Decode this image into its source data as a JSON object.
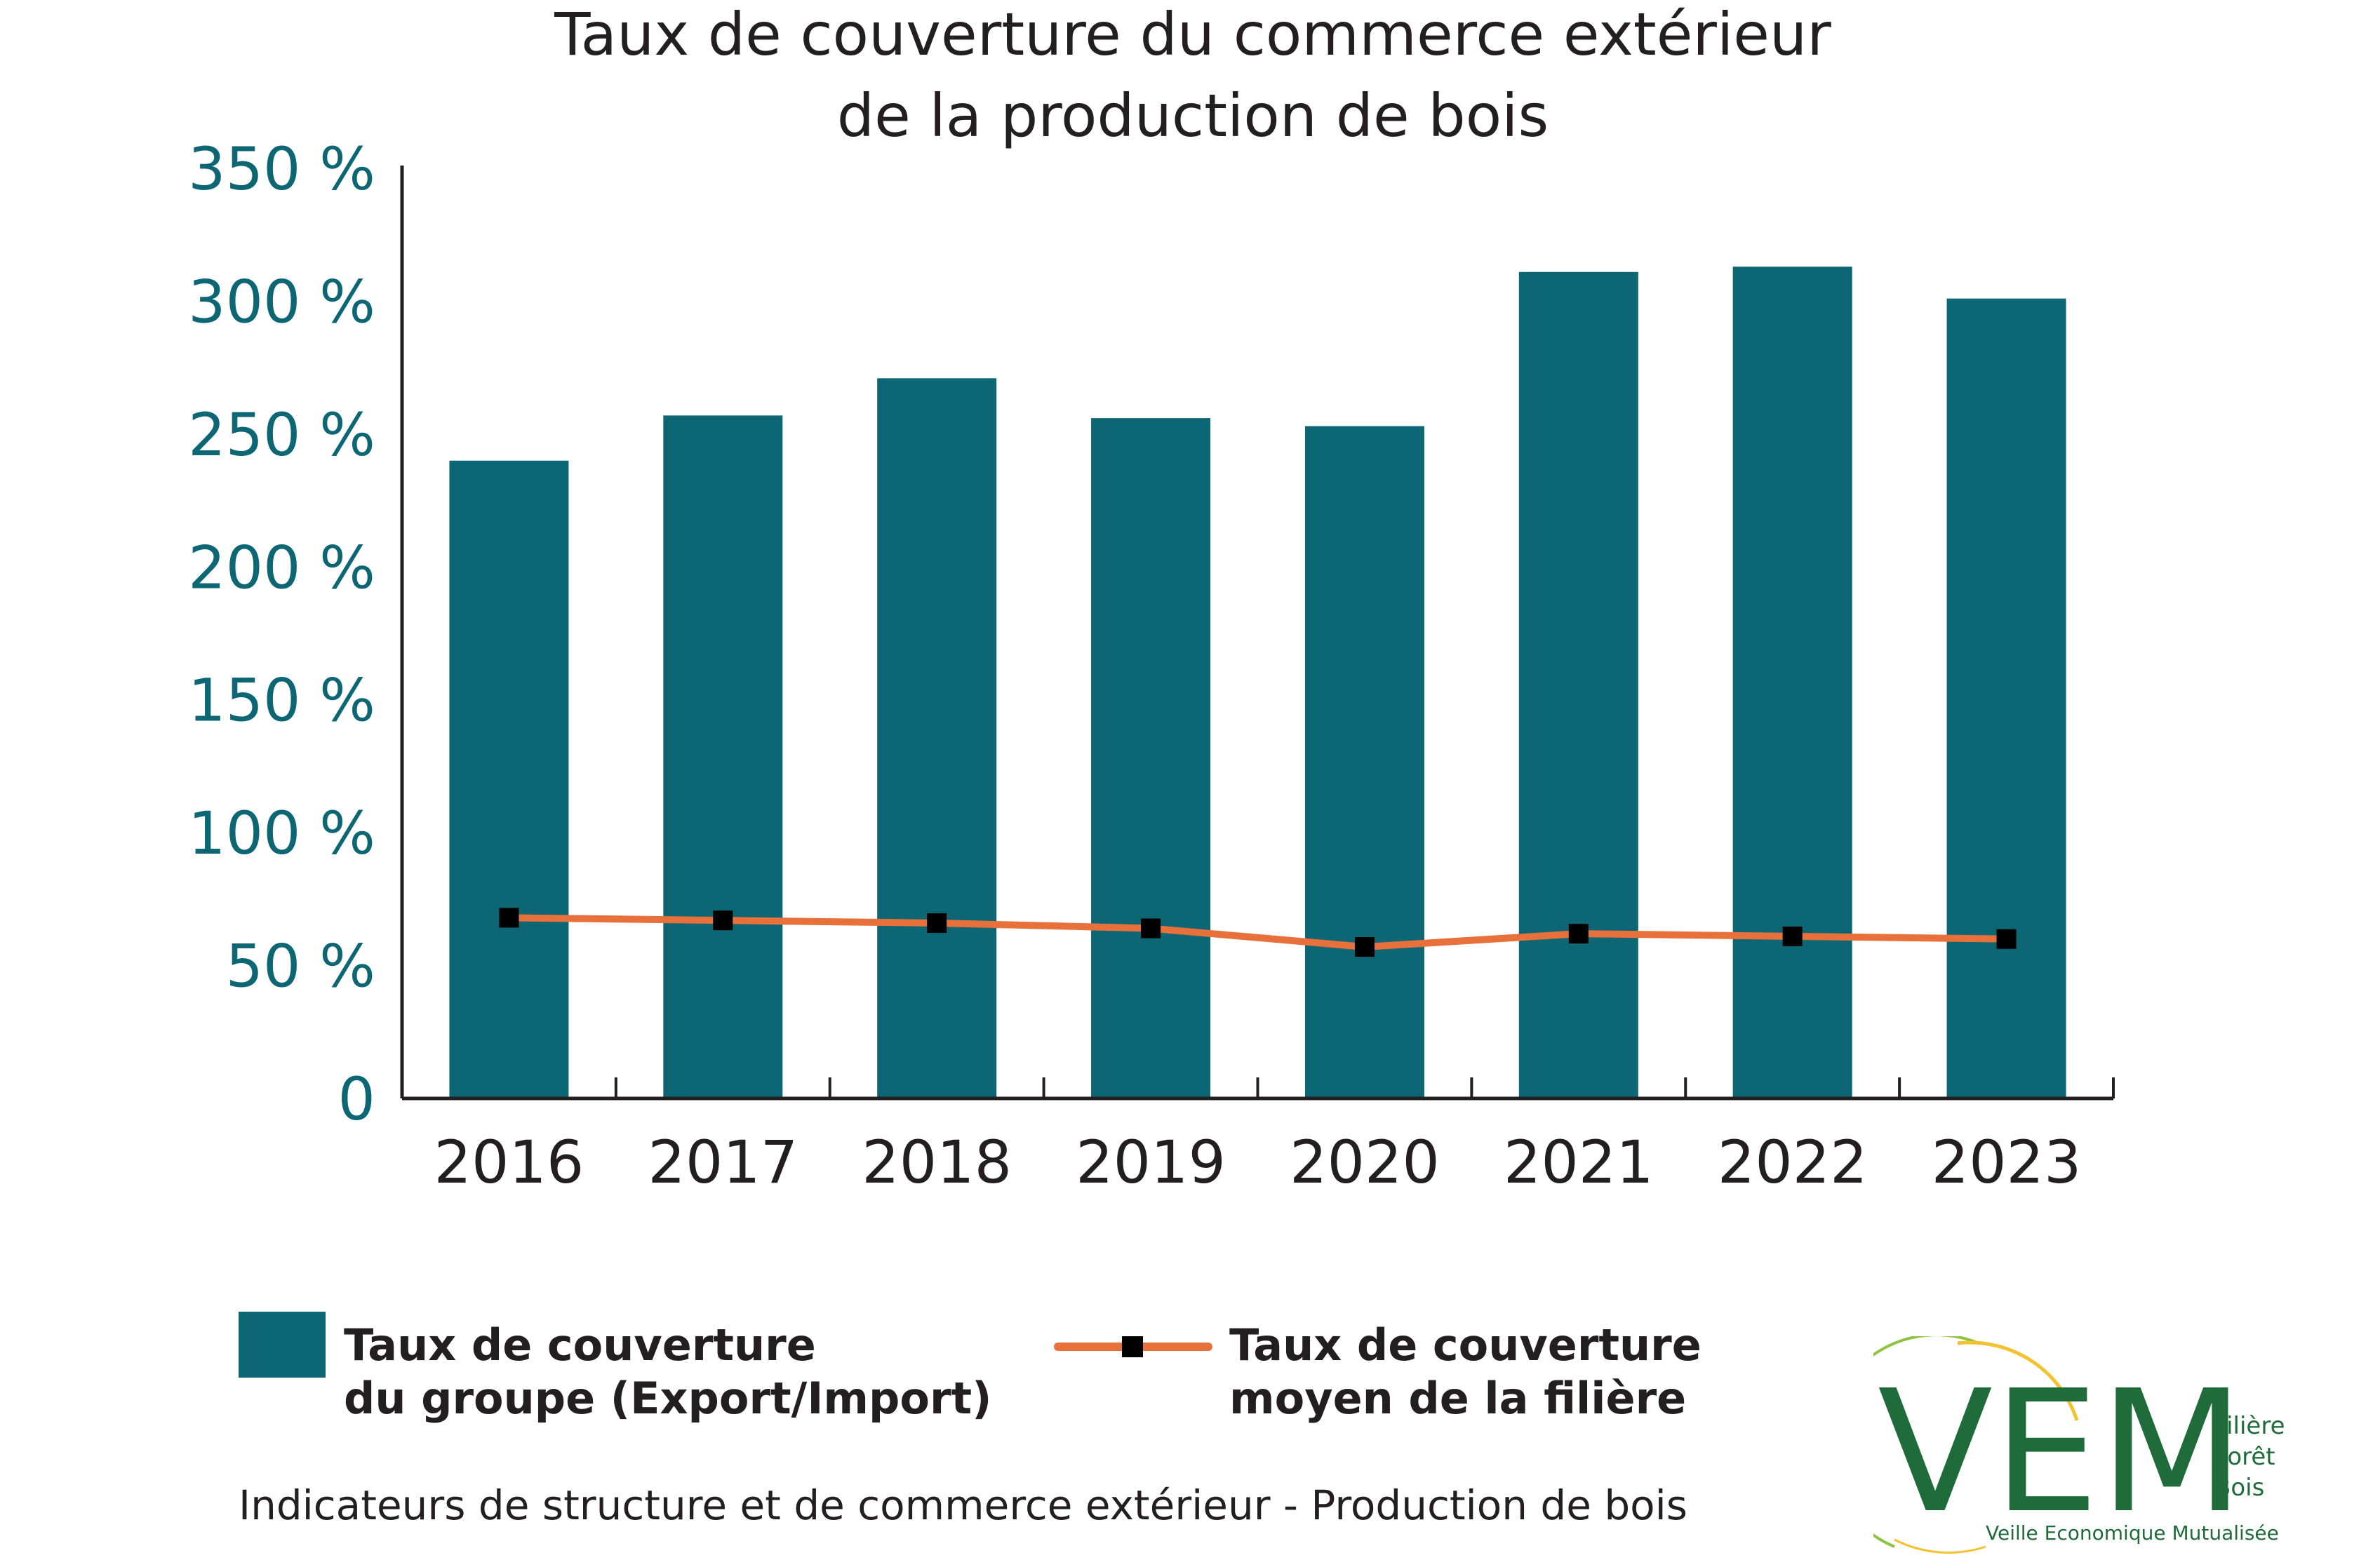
{
  "chart_data": {
    "type": "bar",
    "title": [
      "Taux de couverture du commerce extérieur",
      "de la production de bois"
    ],
    "categories": [
      "2016",
      "2017",
      "2018",
      "2019",
      "2020",
      "2021",
      "2022",
      "2023"
    ],
    "ylim": [
      0,
      350
    ],
    "yticks": [
      0,
      50,
      100,
      150,
      200,
      250,
      300,
      350
    ],
    "ytick_labels": [
      "0",
      "50 %",
      "100 %",
      "150 %",
      "200 %",
      "250 %",
      "300 %",
      "350 %"
    ],
    "series": [
      {
        "name": "Taux de couverture du groupe (Export/Import)",
        "type": "bar",
        "color": "#0d6673",
        "values": [
          240,
          257,
          271,
          256,
          253,
          311,
          313,
          301
        ]
      },
      {
        "name": "Taux de couverture moyen de la filière",
        "type": "line",
        "color": "#e8703a",
        "marker_color": "#000000",
        "values": [
          68,
          67,
          66,
          64,
          57,
          62,
          61,
          60
        ]
      }
    ],
    "legend": [
      {
        "lines": [
          "Taux de couverture",
          "du groupe (Export/Import)"
        ]
      },
      {
        "lines": [
          "Taux de couverture",
          "moyen de la filière"
        ]
      }
    ]
  },
  "footer": "Indicateurs de structure et de commerce extérieur - Production de bois",
  "logo": {
    "mark": "VEM",
    "words": [
      "Filière",
      "Forêt",
      "Bois"
    ],
    "tagline": "Veille Economique Mutualisée"
  }
}
